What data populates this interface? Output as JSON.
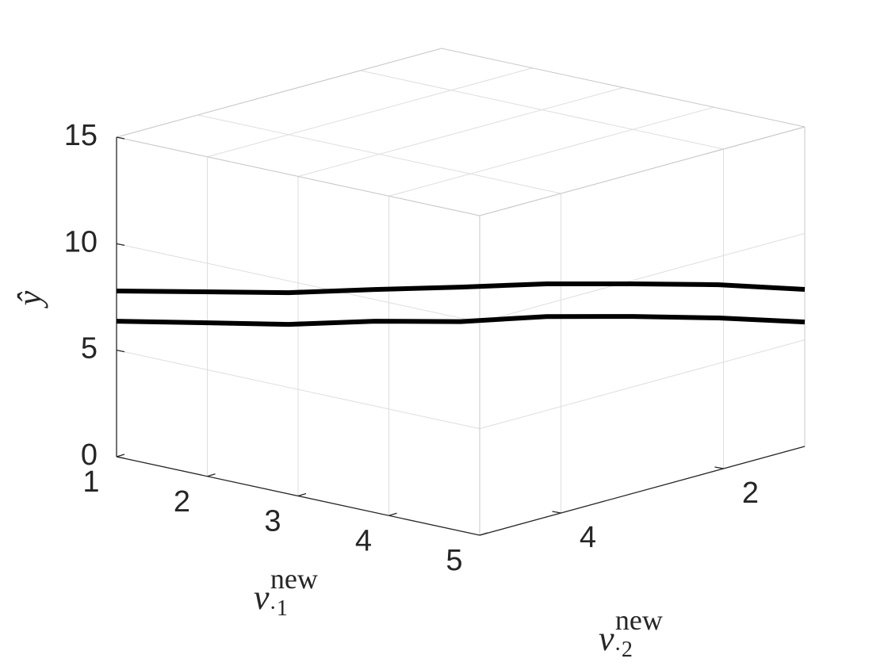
{
  "chart_data": {
    "type": "surface3d",
    "xlabel": {
      "base": "v",
      "sub": "·1",
      "sup": "new"
    },
    "ylabel": {
      "base": "v",
      "sub": "·2",
      "sup": "new"
    },
    "zlabel": "ŷ",
    "xlim": [
      1,
      5
    ],
    "ylim": [
      1,
      5
    ],
    "zlim": [
      0,
      15
    ],
    "xticks": [
      1,
      2,
      3,
      4,
      5
    ],
    "yticks": [
      2,
      4
    ],
    "zticks": [
      0,
      5,
      10,
      15
    ],
    "grid": true,
    "x": [
      1,
      1.5,
      2,
      2.5,
      3,
      3.5,
      4,
      4.5,
      5
    ],
    "y": [
      5,
      4.5,
      4,
      3.5,
      3,
      2.5,
      2,
      1.5,
      1
    ],
    "series": [
      {
        "color": "#000000",
        "values": [
          7.78,
          7.68,
          7.58,
          7.67,
          7.72,
          7.81,
          7.75,
          7.65,
          7.37
        ]
      },
      {
        "color": "#000000",
        "values": [
          6.36,
          6.23,
          6.09,
          6.18,
          6.1,
          6.28,
          6.22,
          6.09,
          5.84
        ]
      }
    ]
  }
}
